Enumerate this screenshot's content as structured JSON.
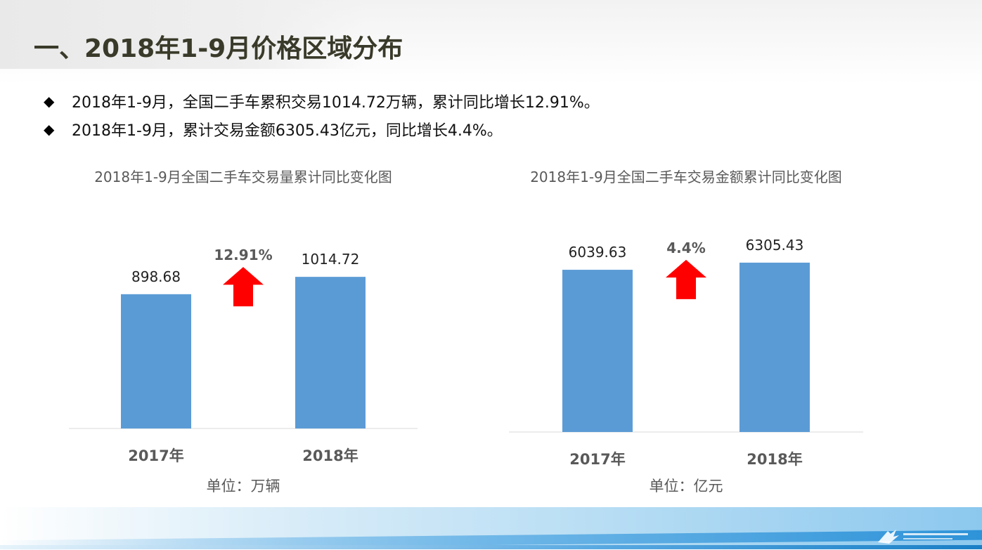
{
  "page": {
    "title": "一、2018年1-9月价格区域分布",
    "bullets": [
      "2018年1-9月，全国二手车累积交易1014.72万辆，累计同比增长12.91%。",
      "2018年1-9月，累计交易金额6305.43亿元，同比增长4.4%。"
    ],
    "bullet_icon": "diamond-icon"
  },
  "chart_data": [
    {
      "type": "bar",
      "title": "2018年1-9月全国二手车交易量累计同比变化图",
      "categories": [
        "2017年",
        "2018年"
      ],
      "values": [
        898.68,
        1014.72
      ],
      "value_labels": [
        "898.68",
        "1014.72"
      ],
      "growth_label": "12.91%",
      "unit": "单位：万辆",
      "bar_color": "#5B9BD5",
      "arrow_color": "#FF0000",
      "ylim": [
        0,
        1100
      ]
    },
    {
      "type": "bar",
      "title": "2018年1-9月全国二手车交易金额累计同比变化图",
      "categories": [
        "2017年",
        "2018年"
      ],
      "values": [
        6039.63,
        6305.43
      ],
      "value_labels": [
        "6039.63",
        "6305.43"
      ],
      "growth_label": "4.4%",
      "unit": "单位：亿元",
      "bar_color": "#5B9BD5",
      "arrow_color": "#FF0000",
      "ylim": [
        0,
        6800
      ]
    }
  ]
}
